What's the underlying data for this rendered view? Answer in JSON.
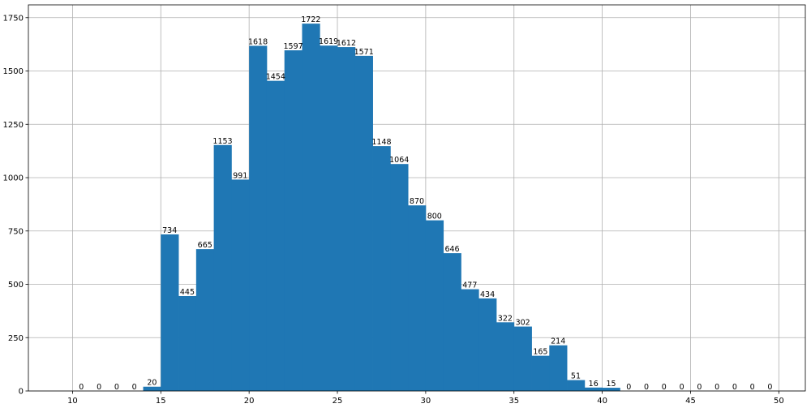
{
  "chart_data": {
    "type": "bar",
    "title": "",
    "xlabel": "",
    "ylabel": "",
    "bin_width": 1,
    "bin_starts": [
      10,
      11,
      12,
      13,
      14,
      15,
      16,
      17,
      18,
      19,
      20,
      21,
      22,
      23,
      24,
      25,
      26,
      27,
      28,
      29,
      30,
      31,
      32,
      33,
      34,
      35,
      36,
      37,
      38,
      39,
      40,
      41,
      42,
      43,
      44,
      45,
      46,
      47,
      48,
      49
    ],
    "values": [
      0,
      0,
      0,
      0,
      20,
      734,
      445,
      665,
      1153,
      991,
      1618,
      1454,
      1597,
      1722,
      1619,
      1612,
      1571,
      1148,
      1064,
      870,
      800,
      646,
      477,
      434,
      322,
      302,
      165,
      214,
      51,
      16,
      15,
      0,
      0,
      0,
      0,
      0,
      0,
      0,
      0,
      0
    ],
    "xlim": [
      7.5,
      51.5
    ],
    "ylim": [
      0,
      1810
    ],
    "xticks": [
      10,
      15,
      20,
      25,
      30,
      35,
      40,
      45,
      50
    ],
    "xtick_labels": [
      "10",
      "15",
      "20",
      "25",
      "30",
      "35",
      "40",
      "45",
      "50"
    ],
    "yticks": [
      0,
      250,
      500,
      750,
      1000,
      1250,
      1500,
      1750
    ],
    "ytick_labels": [
      "0",
      "250",
      "500",
      "750",
      "1000",
      "1250",
      "1500",
      "1750"
    ],
    "grid": true,
    "bar_color": "#1f77b4"
  }
}
